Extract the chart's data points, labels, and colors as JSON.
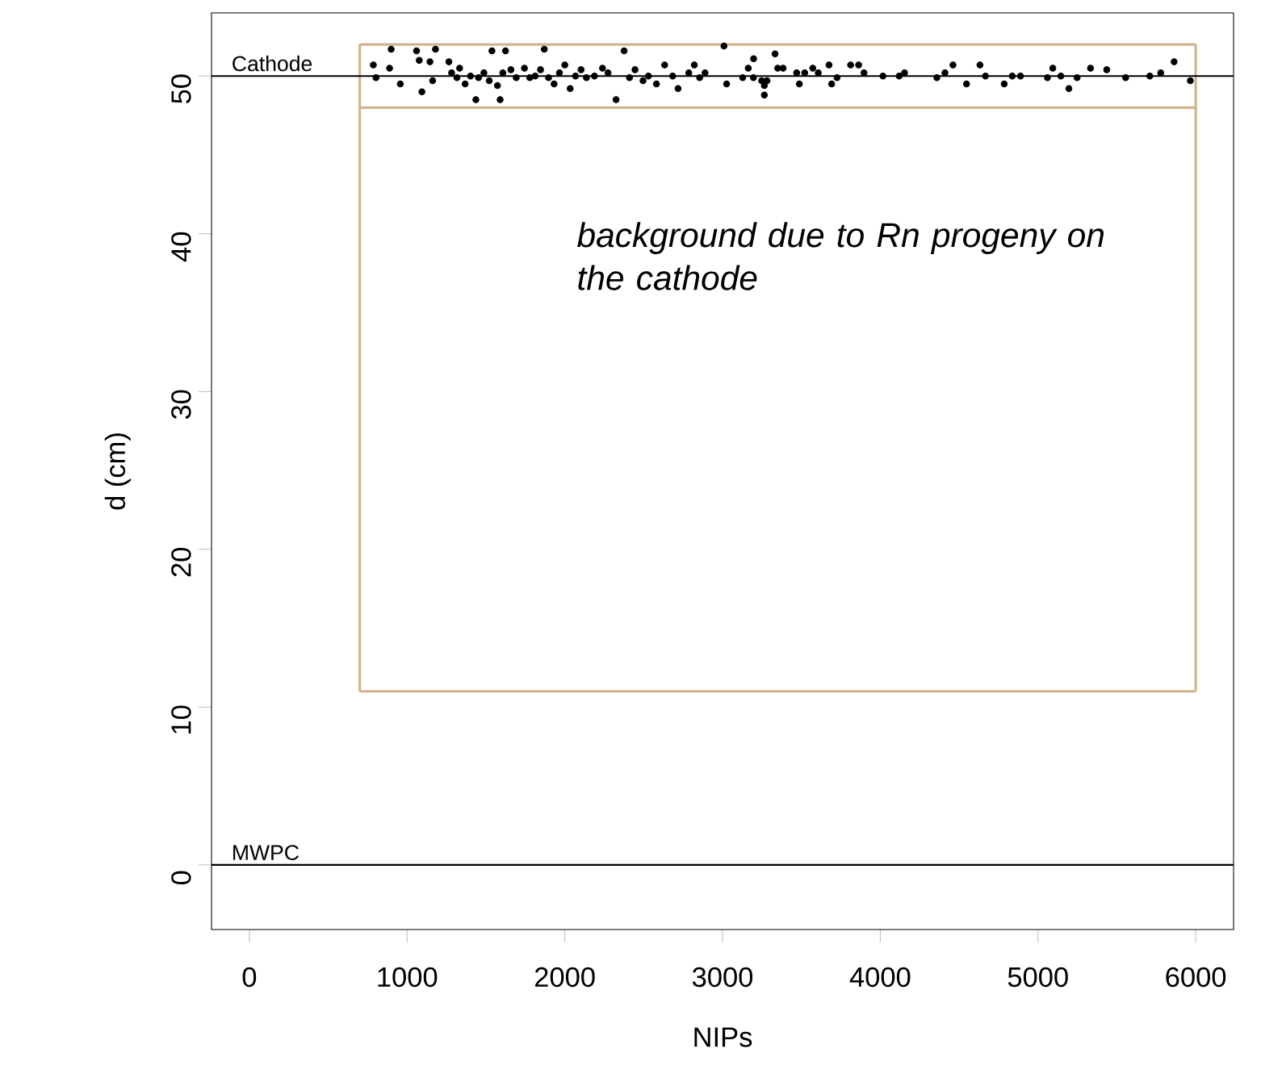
{
  "chart_data": {
    "type": "scatter",
    "xlabel": "NIPs",
    "ylabel": "d (cm)",
    "xlim": [
      -240,
      6240
    ],
    "ylim": [
      -4.1,
      54
    ],
    "xticks": [
      0,
      1000,
      2000,
      3000,
      4000,
      5000,
      6000
    ],
    "yticks": [
      0,
      10,
      20,
      30,
      40,
      50
    ],
    "marker": "circle",
    "series": [
      {
        "color": "#000000",
        "x": [
          786,
          899,
          889,
          803,
          957,
          1060,
          1094,
          1077,
          1180,
          1162,
          1145,
          1265,
          1282,
          1316,
          1333,
          1368,
          1402,
          1436,
          1453,
          1487,
          1521,
          1538,
          1573,
          1590,
          1607,
          1624,
          1658,
          1692,
          1744,
          1778,
          1812,
          1846,
          1870,
          1897,
          1932,
          1966,
          2000,
          2034,
          2068,
          2103,
          2137,
          2188,
          2239,
          2274,
          2325,
          2376,
          2410,
          2445,
          2496,
          2530,
          2581,
          2633,
          2684,
          2718,
          2786,
          2821,
          2855,
          2889,
          3009,
          3026,
          3128,
          3163,
          3197,
          3248,
          3265,
          3196,
          3265,
          3282,
          3333,
          3350,
          3384,
          3470,
          3487,
          3521,
          3572,
          3607,
          3675,
          3692,
          3726,
          3812,
          3863,
          3897,
          4017,
          4120,
          4154,
          4359,
          4410,
          4461,
          4547,
          4632,
          4667,
          4786,
          4837,
          4889,
          5060,
          5094,
          5145,
          5196,
          5248,
          5333,
          5436,
          5556,
          5709,
          5778,
          5863,
          5966
        ],
        "values": [
          50.7,
          51.7,
          50.5,
          49.9,
          49.5,
          51.6,
          49.0,
          51.0,
          51.7,
          49.7,
          50.9,
          50.9,
          50.2,
          49.9,
          50.5,
          49.5,
          50.0,
          48.5,
          49.9,
          50.2,
          49.7,
          51.6,
          49.4,
          48.5,
          50.2,
          51.6,
          50.4,
          49.9,
          50.5,
          49.9,
          50.0,
          50.4,
          51.7,
          49.9,
          49.5,
          50.2,
          50.7,
          49.2,
          50.0,
          50.4,
          49.9,
          50.0,
          50.5,
          50.2,
          48.5,
          51.6,
          49.9,
          50.4,
          49.7,
          50.0,
          49.5,
          50.7,
          50.0,
          49.2,
          50.2,
          50.7,
          49.9,
          50.2,
          51.9,
          49.5,
          49.9,
          50.5,
          51.1,
          49.7,
          49.4,
          49.9,
          48.8,
          49.7,
          51.4,
          50.5,
          50.5,
          50.2,
          49.5,
          50.2,
          50.5,
          50.2,
          50.7,
          49.5,
          49.9,
          50.7,
          50.7,
          50.2,
          50.0,
          50.0,
          50.2,
          49.9,
          50.2,
          50.7,
          49.5,
          50.7,
          50.0,
          49.5,
          50.0,
          50.0,
          49.9,
          50.5,
          50.0,
          49.2,
          49.9,
          50.5,
          50.4,
          49.9,
          50.0,
          50.2,
          50.9,
          49.7
        ]
      },
      {
        "type": "line",
        "marker": "none",
        "color": "#d2b48c",
        "x": [
          700,
          6000
        ],
        "values": [
          52,
          52
        ]
      },
      {
        "type": "line",
        "marker": "none",
        "color": "#d2b48c",
        "x": [
          700,
          6000
        ],
        "values": [
          48,
          48
        ]
      },
      {
        "type": "line",
        "marker": "none",
        "color": "#d2b48c",
        "x": [
          700,
          6000
        ],
        "values": [
          11,
          11
        ],
        "errors": [
          [
            11,
            52
          ],
          [
            11,
            52
          ]
        ]
      }
    ],
    "ref_lines": [
      {
        "axis": "y",
        "value": 50,
        "label": "Cathode",
        "color": "#000000"
      },
      {
        "axis": "y",
        "value": 0,
        "label": "MWPC",
        "color": "#000000"
      }
    ],
    "annotations": [
      "background due to Rn progeny on the cathode"
    ]
  }
}
